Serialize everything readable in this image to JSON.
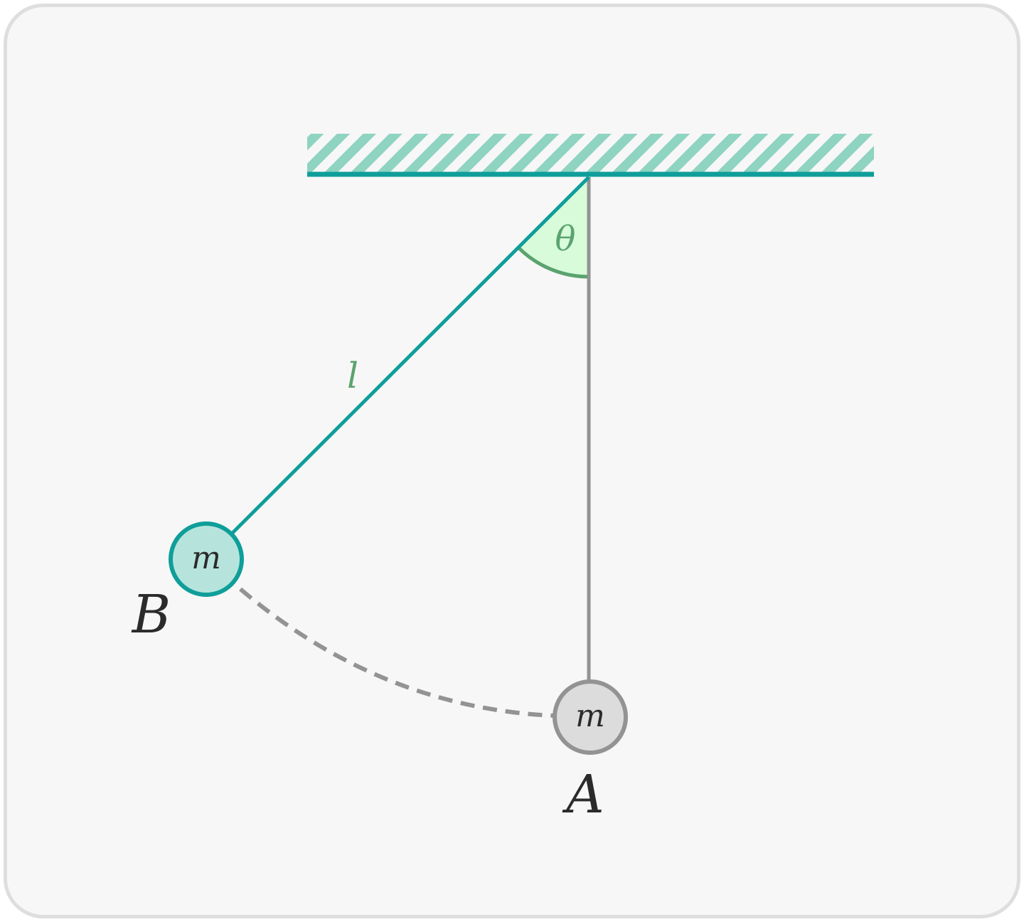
{
  "diagram": {
    "labels": {
      "angle": "θ",
      "length": "l",
      "mass_b": "m",
      "mass_a": "m",
      "point_b": "B",
      "point_a": "A"
    },
    "colors": {
      "card_background": "#f7f7f7",
      "card_border": "#dedede",
      "teal": "#0f9e9a",
      "hatch": "#8fd3c1",
      "angle_fill": "#d8fbd9",
      "angle_stroke": "#5aa36e",
      "gray": "#939393",
      "mass_a_fill": "#dcdcdc",
      "mass_b_fill": "#b6e4dc",
      "text_dark": "#2b2b2b"
    }
  }
}
